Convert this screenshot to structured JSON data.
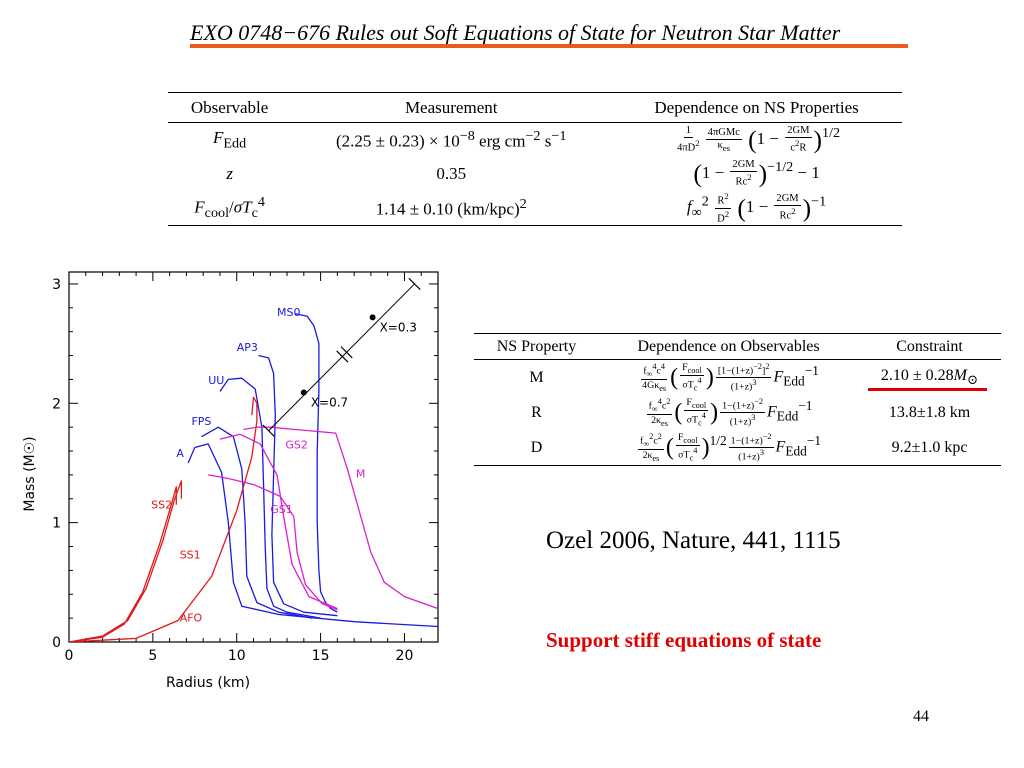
{
  "slide": {
    "title": "EXO 0748−676 Rules out Soft Equations of State for Neutron Star Matter",
    "citation": "Ozel 2006, Nature, 441, 1115",
    "conclusion": "Support stiff equations of state",
    "page_number": "44",
    "accent_color": "#ee5a1c",
    "highlight_color": "#e00000"
  },
  "table_observables": {
    "headers": [
      "Observable",
      "Measurement",
      "Dependence on NS Properties"
    ],
    "rows": [
      {
        "observable": "F_Edd",
        "measurement": "(2.25 ± 0.23) × 10⁻⁸ erg cm⁻² s⁻¹",
        "dependence": "1/(4πD²) · 4πGMc/κ_es · (1 − 2GM/(c²R))^(1/2)"
      },
      {
        "observable": "z",
        "measurement": "0.35",
        "dependence": "(1 − 2GM/(Rc²))^(−1/2) − 1"
      },
      {
        "observable": "F_cool/σT_c⁴",
        "measurement": "1.14 ± 0.10 (km/kpc)²",
        "dependence": "f∞² R²/D² (1 − 2GM/(Rc²))^(−1)"
      }
    ]
  },
  "table_constraints": {
    "headers": [
      "NS Property",
      "Dependence on Observables",
      "Constraint"
    ],
    "rows": [
      {
        "property": "M",
        "dependence": "f∞⁴c⁴/(4Gκ_es) (F_cool/σT_c⁴) [1−(1+z)⁻²]²/(1+z)³ F_Edd⁻¹",
        "constraint": "2.10 ± 0.28M⊙"
      },
      {
        "property": "R",
        "dependence": "f∞⁴c²/(2κ_es) (F_cool/σT_c⁴) (1−(1+z)⁻²)/(1+z)³ F_Edd⁻¹",
        "constraint": "13.8±1.8 km"
      },
      {
        "property": "D",
        "dependence": "f∞²c²/(2κ_es) (F_cool/σT_c⁴)^(1/2) (1−(1+z)⁻²)/(1+z)³ F_Edd⁻¹",
        "constraint": "9.2±1.0 kpc"
      }
    ]
  },
  "chart_data": {
    "type": "line",
    "xlabel": "Radius (km)",
    "ylabel": "Mass (M☉)",
    "xlim": [
      0,
      22
    ],
    "ylim": [
      0,
      3.1
    ],
    "xticks": [
      "0",
      "5",
      "10",
      "15",
      "20"
    ],
    "yticks": [
      "0",
      "1",
      "2",
      "3"
    ],
    "series": [
      {
        "name": "MS0",
        "color": "#1a1adf",
        "label_at": [
          12.4,
          2.73
        ],
        "points": [
          [
            16.0,
            0.25
          ],
          [
            15.6,
            0.28
          ],
          [
            15.3,
            0.33
          ],
          [
            15.0,
            0.42
          ],
          [
            14.9,
            0.6
          ],
          [
            14.8,
            1.0
          ],
          [
            14.8,
            1.6
          ],
          [
            14.9,
            2.1
          ],
          [
            14.9,
            2.5
          ],
          [
            14.6,
            2.65
          ],
          [
            14.2,
            2.73
          ],
          [
            13.5,
            2.75
          ]
        ]
      },
      {
        "name": "AP3",
        "color": "#1a1adf",
        "label_at": [
          10.0,
          2.44
        ],
        "points": [
          [
            16.0,
            0.22
          ],
          [
            14.0,
            0.25
          ],
          [
            12.8,
            0.32
          ],
          [
            12.2,
            0.5
          ],
          [
            12.1,
            0.9
          ],
          [
            12.2,
            1.4
          ],
          [
            12.3,
            1.9
          ],
          [
            12.2,
            2.25
          ],
          [
            11.9,
            2.38
          ],
          [
            11.3,
            2.4
          ]
        ]
      },
      {
        "name": "UU",
        "color": "#1a1adf",
        "label_at": [
          8.3,
          2.16
        ],
        "points": [
          [
            15.0,
            0.2
          ],
          [
            13.0,
            0.25
          ],
          [
            12.2,
            0.3
          ],
          [
            11.8,
            0.45
          ],
          [
            11.7,
            0.8
          ],
          [
            11.6,
            1.3
          ],
          [
            11.5,
            1.8
          ],
          [
            11.1,
            2.12
          ],
          [
            10.3,
            2.21
          ],
          [
            9.5,
            2.2
          ],
          [
            9.0,
            2.1
          ]
        ]
      },
      {
        "name": "FPS",
        "color": "#1a1adf",
        "label_at": [
          7.3,
          1.82
        ],
        "points": [
          [
            14.5,
            0.2
          ],
          [
            12.5,
            0.25
          ],
          [
            11.2,
            0.33
          ],
          [
            10.6,
            0.55
          ],
          [
            10.5,
            1.0
          ],
          [
            10.3,
            1.45
          ],
          [
            9.8,
            1.72
          ],
          [
            8.9,
            1.8
          ],
          [
            7.9,
            1.72
          ]
        ]
      },
      {
        "name": "A",
        "color": "#1a1adf",
        "label_at": [
          6.4,
          1.55
        ],
        "points": [
          [
            22.0,
            0.13
          ],
          [
            17.0,
            0.17
          ],
          [
            12.5,
            0.23
          ],
          [
            10.3,
            0.3
          ],
          [
            9.8,
            0.5
          ],
          [
            9.5,
            1.0
          ],
          [
            9.1,
            1.42
          ],
          [
            8.3,
            1.66
          ],
          [
            7.5,
            1.63
          ],
          [
            7.1,
            1.5
          ]
        ]
      },
      {
        "name": "SS2",
        "color": "#e01818",
        "label_at": [
          4.9,
          1.12
        ],
        "points": [
          [
            0.0,
            0.0
          ],
          [
            2.0,
            0.05
          ],
          [
            3.5,
            0.18
          ],
          [
            4.6,
            0.45
          ],
          [
            5.6,
            0.85
          ],
          [
            6.3,
            1.2
          ],
          [
            6.7,
            1.35
          ],
          [
            6.7,
            1.2
          ]
        ]
      },
      {
        "name": "SS1",
        "color": "#e01818",
        "label_at": [
          6.6,
          0.7
        ],
        "points": [
          [
            0.0,
            0.0
          ],
          [
            2.0,
            0.04
          ],
          [
            3.3,
            0.15
          ],
          [
            4.4,
            0.42
          ],
          [
            5.4,
            0.82
          ],
          [
            6.1,
            1.15
          ],
          [
            6.4,
            1.3
          ],
          [
            6.4,
            1.15
          ]
        ]
      },
      {
        "name": "AFO",
        "color": "#e01818",
        "label_at": [
          6.6,
          0.17
        ],
        "points": [
          [
            0.0,
            0.0
          ],
          [
            4.0,
            0.03
          ],
          [
            6.5,
            0.18
          ],
          [
            8.5,
            0.55
          ],
          [
            10.0,
            1.1
          ],
          [
            10.9,
            1.55
          ],
          [
            11.2,
            1.85
          ],
          [
            11.2,
            2.0
          ],
          [
            11.0,
            2.05
          ],
          [
            10.9,
            1.9
          ]
        ]
      },
      {
        "name": "GS2",
        "color": "#dd1fd0",
        "label_at": [
          12.9,
          1.62
        ],
        "points": [
          [
            16.0,
            0.28
          ],
          [
            14.3,
            0.38
          ],
          [
            13.3,
            0.65
          ],
          [
            12.8,
            1.05
          ],
          [
            12.4,
            1.4
          ],
          [
            11.4,
            1.66
          ],
          [
            10.2,
            1.74
          ],
          [
            9.0,
            1.7
          ]
        ]
      },
      {
        "name": "GS1",
        "color": "#dd1fd0",
        "label_at": [
          12.0,
          1.08
        ],
        "points": [
          [
            16.0,
            0.27
          ],
          [
            15.1,
            0.32
          ],
          [
            14.1,
            0.48
          ],
          [
            13.6,
            0.75
          ],
          [
            13.4,
            1.05
          ],
          [
            12.6,
            1.22
          ],
          [
            11.0,
            1.32
          ],
          [
            9.5,
            1.37
          ],
          [
            8.3,
            1.4
          ]
        ]
      },
      {
        "name": "M",
        "color": "#dd1fd0",
        "label_at": [
          17.1,
          1.38
        ],
        "points": [
          [
            22.0,
            0.28
          ],
          [
            20.0,
            0.38
          ],
          [
            18.8,
            0.5
          ],
          [
            18.0,
            0.75
          ],
          [
            17.4,
            1.05
          ],
          [
            16.6,
            1.45
          ],
          [
            15.9,
            1.75
          ],
          [
            13.5,
            1.78
          ],
          [
            12.0,
            1.8
          ],
          [
            11.2,
            1.8
          ],
          [
            10.4,
            1.78
          ]
        ]
      }
    ],
    "redshift_line": {
      "points": [
        [
          11.9,
          1.77
        ],
        [
          20.6,
          3.0
        ]
      ],
      "markers": [
        {
          "point": [
            14.0,
            2.09
          ],
          "label": "X=0.7"
        },
        {
          "point": [
            18.1,
            2.72
          ],
          "label": "X=0.3"
        }
      ]
    }
  }
}
